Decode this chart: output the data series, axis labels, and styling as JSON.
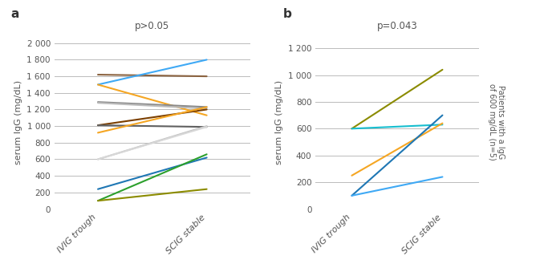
{
  "panel_a": {
    "title": "p>0.05",
    "ylabel": "serum IgG (mg/dL)",
    "xtick_labels": [
      "IVIG trough",
      "SCIG stable"
    ],
    "ylim": [
      0,
      2100
    ],
    "yticks": [
      0,
      200,
      400,
      600,
      800,
      1000,
      1200,
      1400,
      1600,
      1800,
      2000
    ],
    "ytick_labels": [
      "0",
      "200",
      "400",
      "600",
      "800",
      "1 000",
      "1 200",
      "1 400",
      "1 600",
      "1 800",
      "2 000"
    ],
    "lines": [
      {
        "x": [
          0,
          1
        ],
        "y": [
          1620,
          1600
        ],
        "color": "#8B6340"
      },
      {
        "x": [
          0,
          1
        ],
        "y": [
          1500,
          1800
        ],
        "color": "#3FA9F5"
      },
      {
        "x": [
          0,
          1
        ],
        "y": [
          1500,
          1130
        ],
        "color": "#F5A623"
      },
      {
        "x": [
          0,
          1
        ],
        "y": [
          1290,
          1230
        ],
        "color": "#888888"
      },
      {
        "x": [
          0,
          1
        ],
        "y": [
          1280,
          1210
        ],
        "color": "#BBBBBB"
      },
      {
        "x": [
          0,
          1
        ],
        "y": [
          1010,
          1200
        ],
        "color": "#7B3F00"
      },
      {
        "x": [
          0,
          1
        ],
        "y": [
          1010,
          990
        ],
        "color": "#606060"
      },
      {
        "x": [
          0,
          1
        ],
        "y": [
          920,
          1230
        ],
        "color": "#F5A623"
      },
      {
        "x": [
          0,
          1
        ],
        "y": [
          600,
          1000
        ],
        "color": "#C0C0C0"
      },
      {
        "x": [
          0,
          1
        ],
        "y": [
          600,
          990
        ],
        "color": "#D8D8D8"
      },
      {
        "x": [
          0,
          1
        ],
        "y": [
          240,
          620
        ],
        "color": "#1f77b4"
      },
      {
        "x": [
          0,
          1
        ],
        "y": [
          100,
          660
        ],
        "color": "#2ca02c"
      },
      {
        "x": [
          0,
          1
        ],
        "y": [
          100,
          240
        ],
        "color": "#8B8B00"
      }
    ]
  },
  "panel_b": {
    "title": "p=0.043",
    "ylabel": "serum IgG (mg/dL)",
    "ylabel_right": "Patients with a IgG\nof 600 mg/dL (n=5)",
    "xtick_labels": [
      "IVIG trough",
      "SCIG stable"
    ],
    "ylim": [
      0,
      1300
    ],
    "yticks": [
      0,
      200,
      400,
      600,
      800,
      1000,
      1200
    ],
    "ytick_labels": [
      "0",
      "200",
      "400",
      "600",
      "800",
      "1 000",
      "1 200"
    ],
    "lines": [
      {
        "x": [
          0,
          1
        ],
        "y": [
          600,
          1040
        ],
        "color": "#8B8B00"
      },
      {
        "x": [
          0,
          1
        ],
        "y": [
          600,
          630
        ],
        "color": "#17becf"
      },
      {
        "x": [
          0,
          1
        ],
        "y": [
          250,
          640
        ],
        "color": "#F5A623"
      },
      {
        "x": [
          0,
          1
        ],
        "y": [
          100,
          700
        ],
        "color": "#1f77b4"
      },
      {
        "x": [
          0,
          1
        ],
        "y": [
          100,
          240
        ],
        "color": "#3FA9F5"
      }
    ]
  }
}
